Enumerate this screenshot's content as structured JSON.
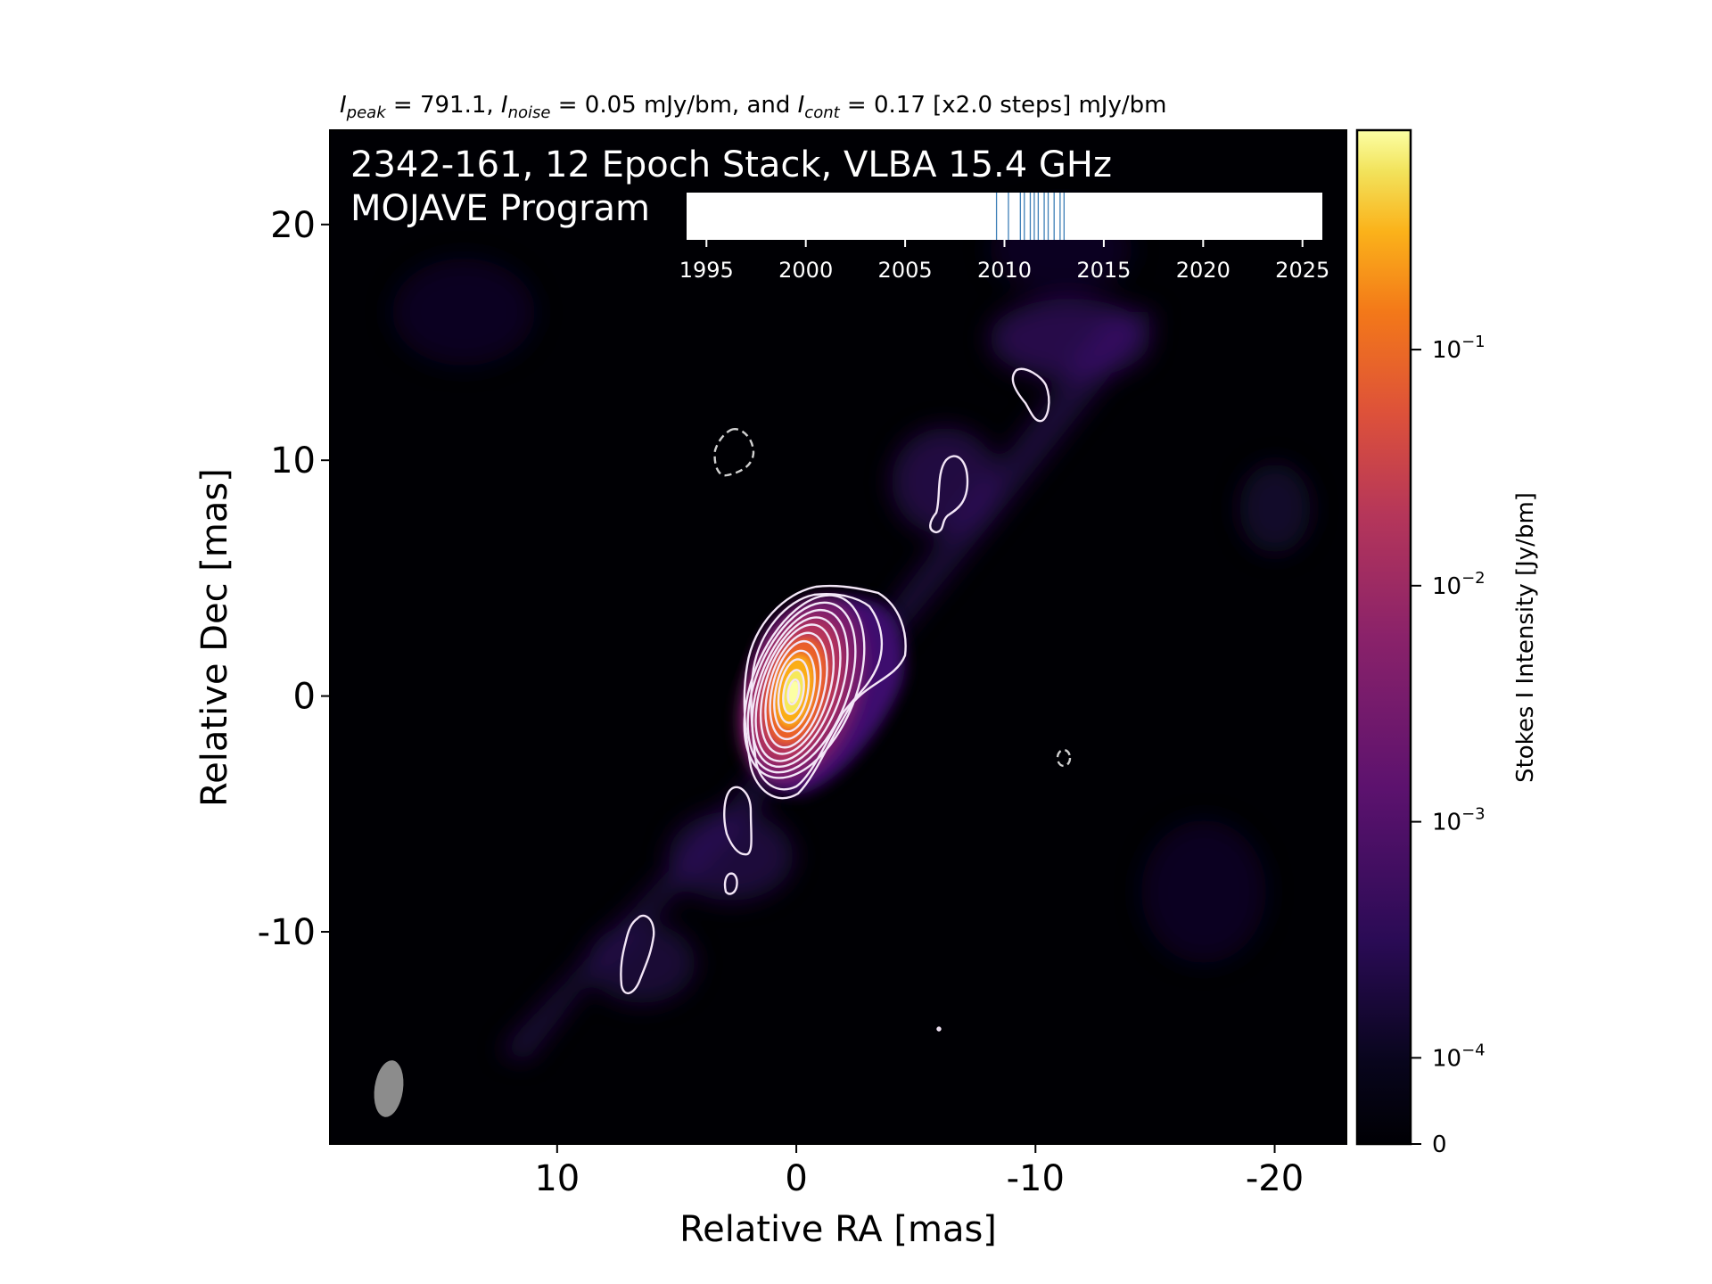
{
  "title_parts": {
    "peak_sym": "I",
    "peak_sub": "peak",
    "peak_val": " = 791.1, ",
    "noise_sym": "I",
    "noise_sub": "noise",
    "noise_val": " = 0.05 mJy/bm, and ",
    "cont_sym": "I",
    "cont_sub": "cont",
    "cont_val": " = 0.17 [x2.0 steps] mJy/bm"
  },
  "overlay": {
    "line1": "2342-161, 12 Epoch Stack, VLBA 15.4 GHz",
    "line2": "MOJAVE Program"
  },
  "colors": {
    "background": "#000004",
    "contour": "#f3e6f7",
    "beam": "#8c8c8c",
    "epoch_tick": "#3d7fb7"
  },
  "chart_data": [
    {
      "type": "heatmap",
      "colormap": "inferno",
      "xlabel": "Relative RA [mas]",
      "ylabel": "Relative Dec [mas]",
      "xlim": [
        19.5,
        -23
      ],
      "ylim": [
        -19,
        24
      ],
      "xticks": [
        10,
        0,
        -10,
        -20
      ],
      "xtick_labels": [
        "10",
        "0",
        "-10",
        "-20"
      ],
      "yticks": [
        20,
        10,
        0,
        -10
      ],
      "ytick_labels": [
        "20",
        "10",
        "0",
        "-10"
      ],
      "peak_mJy_per_beam": 791.1,
      "noise_mJy_per_beam": 0.05,
      "lowest_contour_mJy_per_beam": 0.17,
      "contour_step_factor": 2.0,
      "core_position": [
        0,
        0
      ],
      "jet_position_angle_deg": 36,
      "features": [
        {
          "name": "core",
          "ra": 0,
          "dec": 0
        },
        {
          "name": "knot",
          "ra": -6.8,
          "dec": 8.2
        },
        {
          "name": "knot",
          "ra": -10,
          "dec": 12.7
        },
        {
          "name": "knot",
          "ra": 2.1,
          "dec": -5.5
        },
        {
          "name": "knot",
          "ra": 2.9,
          "dec": -8.0
        },
        {
          "name": "knot",
          "ra": 7.0,
          "dec": -11.2
        }
      ],
      "negative_contours": [
        {
          "ra": 3.0,
          "dec": 10.3
        },
        {
          "ra": -11.3,
          "dec": -2.7
        }
      ]
    },
    {
      "type": "scatter",
      "description_label": "epoch timeline",
      "xlim": [
        1994,
        2026
      ],
      "xticks": [
        1995,
        2000,
        2005,
        2010,
        2015,
        2020,
        2025
      ],
      "xtick_labels": [
        "1995",
        "2000",
        "2005",
        "2010",
        "2015",
        "2020",
        "2025"
      ],
      "epochs": [
        2009.6,
        2010.2,
        2010.8,
        2011.0,
        2011.3,
        2011.5,
        2011.7,
        2012.0,
        2012.2,
        2012.5,
        2012.8,
        2013.0
      ]
    },
    {
      "type": "colorbar",
      "label": "Stokes I Intensity [Jy/bm]",
      "scale": "log",
      "tick_values": [
        0.1,
        0.01,
        0.001,
        0.0001,
        0
      ],
      "tick_base": [
        "10",
        "10",
        "10",
        "10",
        "0"
      ],
      "tick_exp": [
        "−1",
        "−2",
        "−3",
        "−4",
        ""
      ]
    }
  ]
}
